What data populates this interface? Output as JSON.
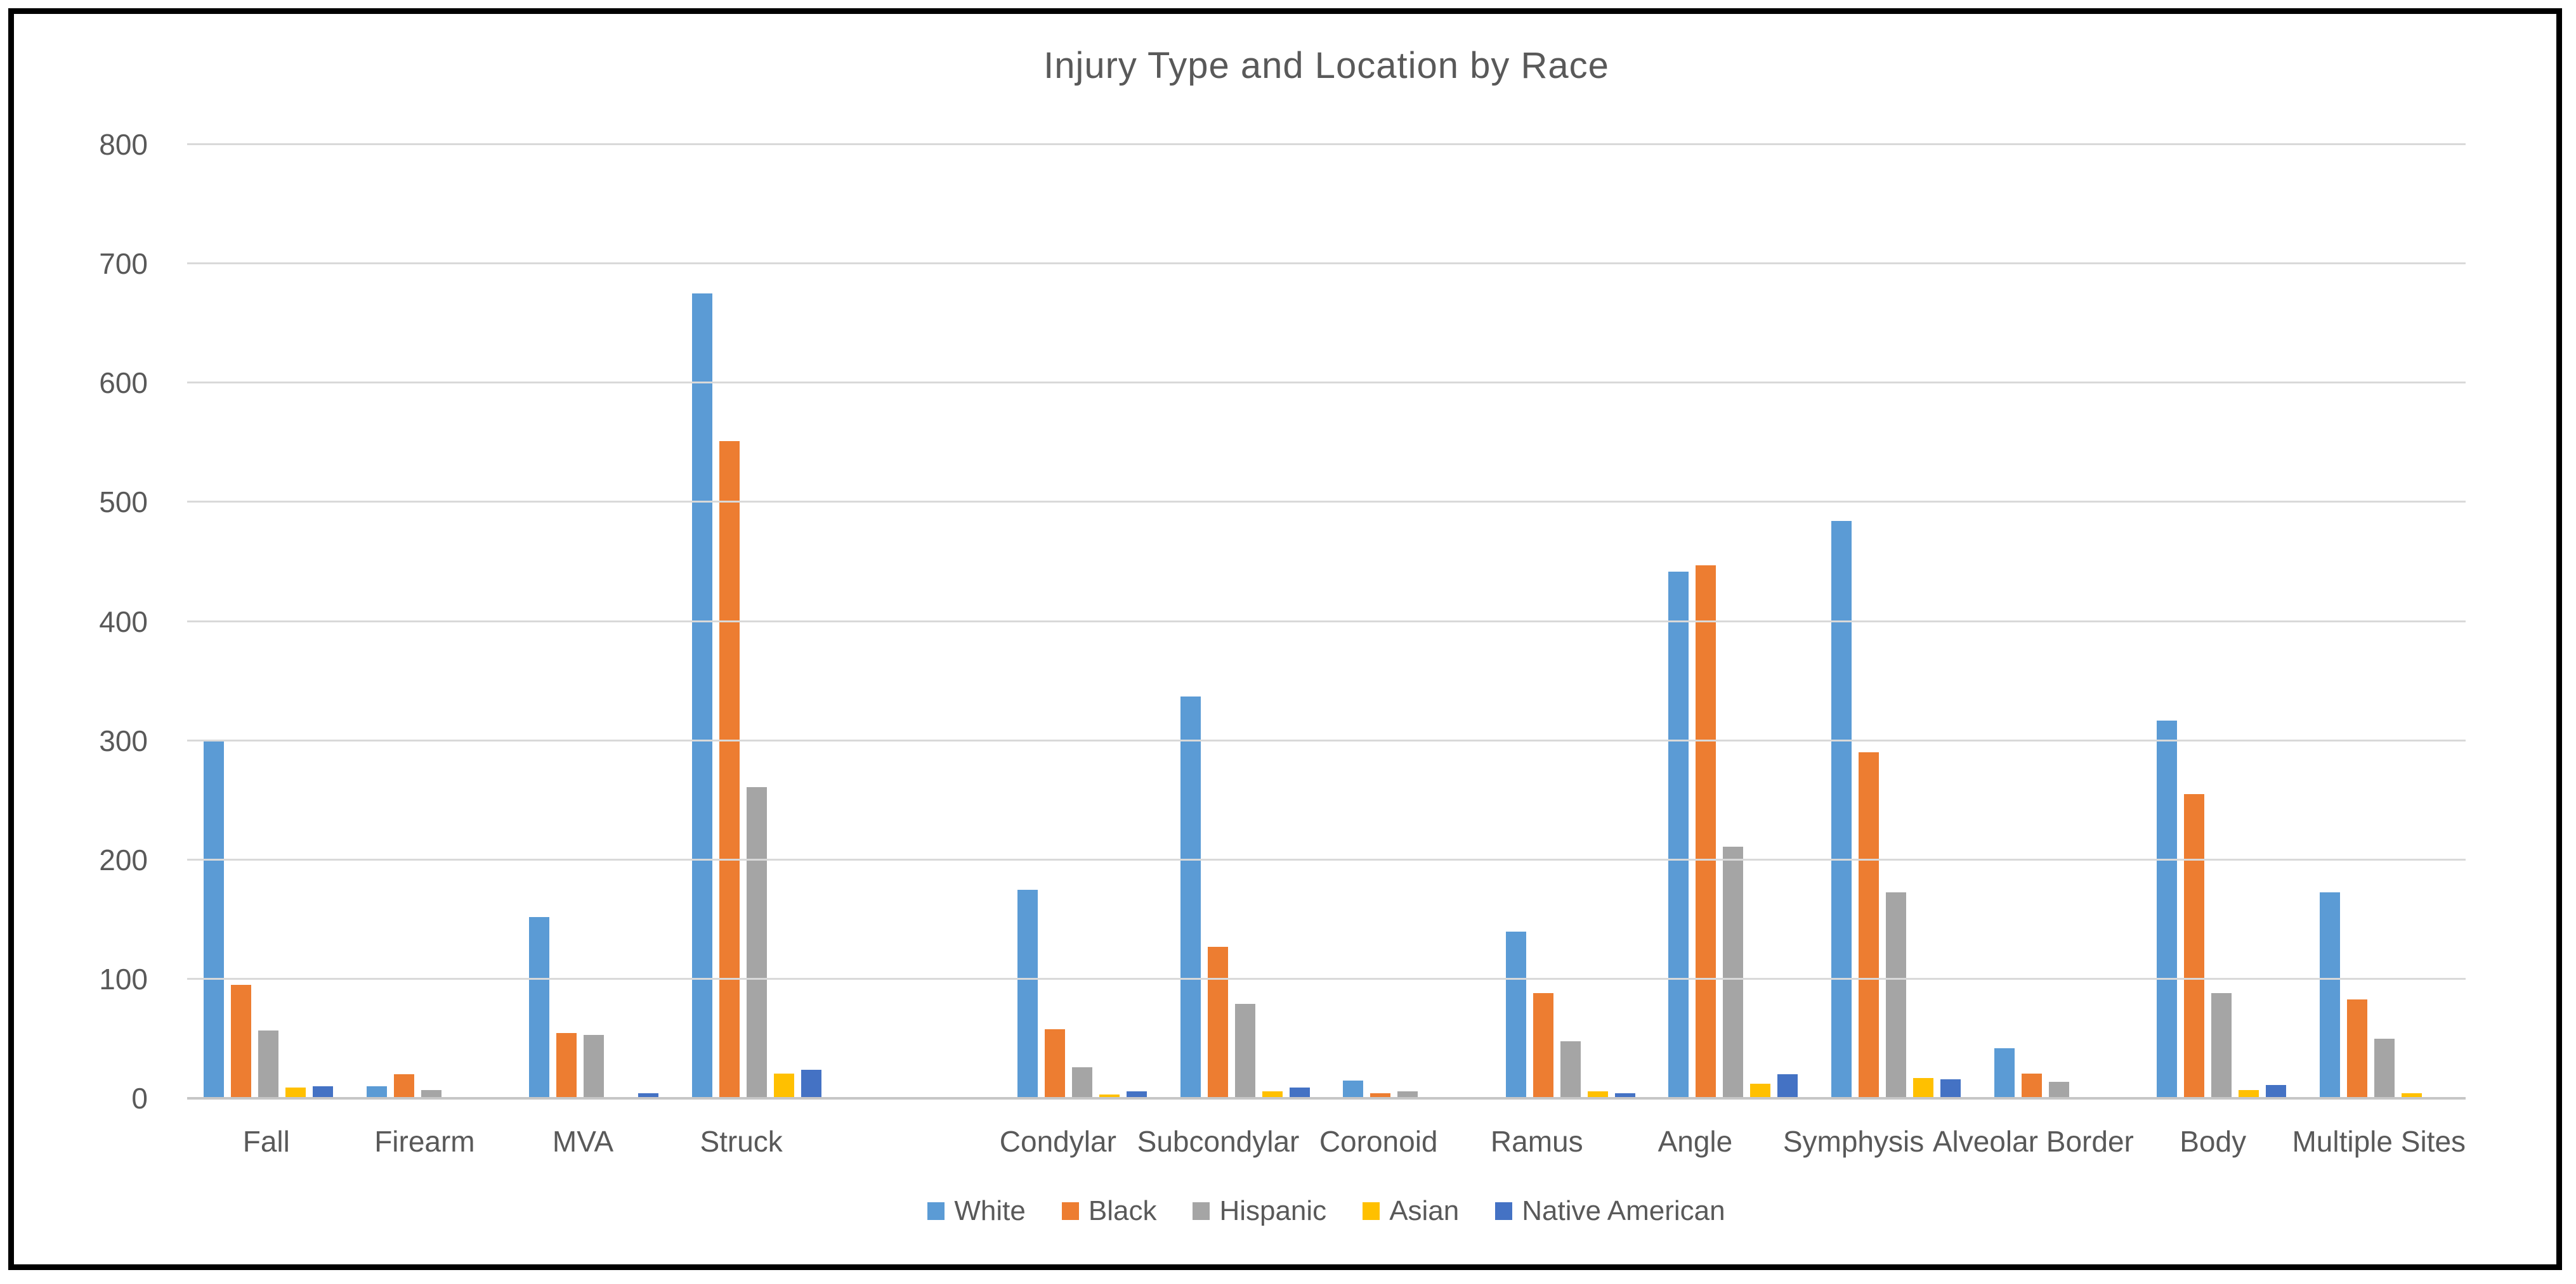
{
  "page": {
    "background_color": "#FFFFFF",
    "frame_color": "#000000"
  },
  "chart_data": {
    "type": "bar",
    "title": "Injury Type and Location by Race",
    "title_color": "#595959",
    "categories": [
      "Fall",
      "Firearm",
      "MVA",
      "Struck",
      "Condylar",
      "Subcondylar",
      "Coronoid",
      "Ramus",
      "Angle",
      "Symphysis",
      "Alveolar Border",
      "Body",
      "Multiple Sites"
    ],
    "series": [
      {
        "name": "White",
        "color": "#5B9BD5",
        "values": [
          300,
          10,
          152,
          675,
          175,
          337,
          15,
          140,
          442,
          484,
          42,
          317,
          173
        ]
      },
      {
        "name": "Black",
        "color": "#ED7D31",
        "values": [
          95,
          20,
          55,
          551,
          58,
          127,
          4,
          88,
          447,
          290,
          21,
          255,
          83
        ]
      },
      {
        "name": "Hispanic",
        "color": "#A5A5A5",
        "values": [
          57,
          7,
          53,
          261,
          26,
          79,
          6,
          48,
          211,
          173,
          14,
          88,
          50
        ]
      },
      {
        "name": "Asian",
        "color": "#FFC000",
        "values": [
          9,
          0,
          0,
          21,
          3,
          6,
          0,
          6,
          12,
          17,
          0,
          7,
          4
        ]
      },
      {
        "name": "Native American",
        "color": "#4472C4",
        "values": [
          10,
          0,
          4,
          24,
          6,
          9,
          0,
          4,
          20,
          16,
          0,
          11,
          0
        ]
      }
    ],
    "xlabel": "",
    "ylabel": "",
    "ylim": [
      0,
      800
    ],
    "yticks": [
      0,
      100,
      200,
      300,
      400,
      500,
      600,
      700,
      800
    ],
    "gap_after_category_index": 3,
    "grid": true,
    "gridline_color": "#D9D9D9",
    "axis_line_color": "#C6C6C6",
    "tick_label_color": "#595959",
    "legend_position": "bottom"
  }
}
